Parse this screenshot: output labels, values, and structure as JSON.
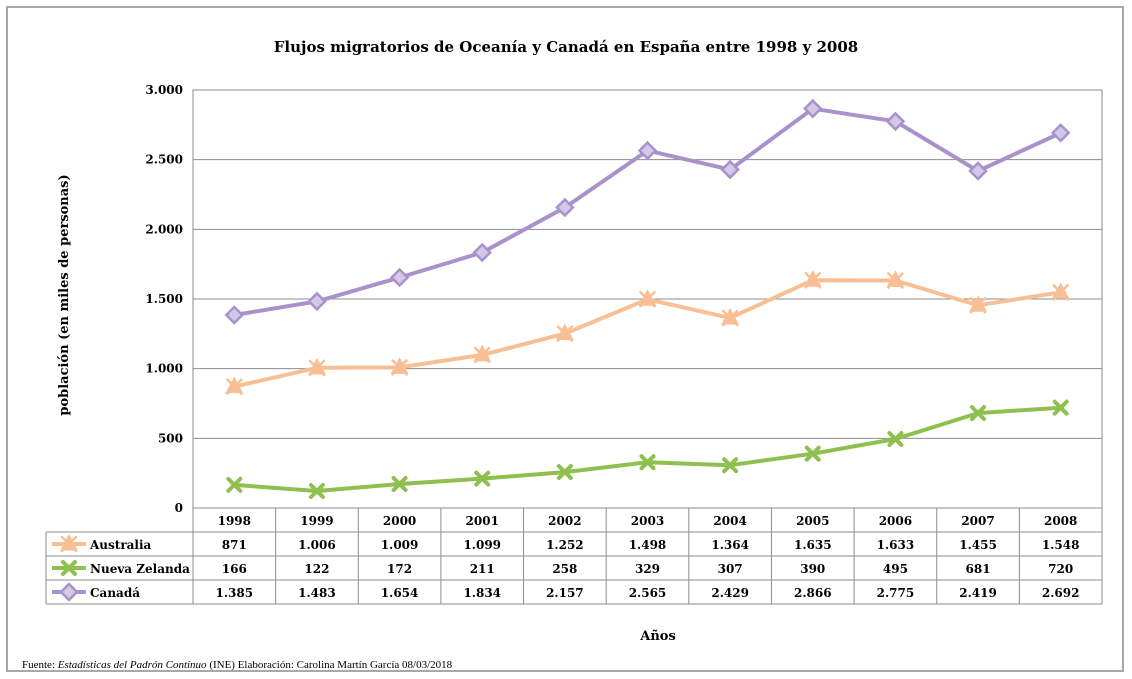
{
  "chart_data": {
    "type": "line",
    "title": "Flujos migratorios de Oceanía y Canadá en España entre 1998 y 2008",
    "xlabel": "Años",
    "ylabel": "población  (en miles de personas)",
    "categories": [
      "1998",
      "1999",
      "2000",
      "2001",
      "2002",
      "2003",
      "2004",
      "2005",
      "2006",
      "2007",
      "2008"
    ],
    "ylim": [
      0,
      3000
    ],
    "yticks": [
      0,
      500,
      1000,
      1500,
      2000,
      2500,
      3000
    ],
    "ytick_labels": [
      "0",
      "500",
      "1.000",
      "1.500",
      "2.000",
      "2.500",
      "3.000"
    ],
    "grid": true,
    "legend": "data-table",
    "series": [
      {
        "name": "Australia",
        "color": "#f8bf94",
        "marker": "triangle-x",
        "values": [
          871,
          1006,
          1009,
          1099,
          1252,
          1498,
          1364,
          1635,
          1633,
          1455,
          1548
        ],
        "labels": [
          "871",
          "1.006",
          "1.009",
          "1.099",
          "1.252",
          "1.498",
          "1.364",
          "1.635",
          "1.633",
          "1.455",
          "1.548"
        ]
      },
      {
        "name": "Nueva Zelanda",
        "color": "#8fbf4f",
        "marker": "x",
        "values": [
          166,
          122,
          172,
          211,
          258,
          329,
          307,
          390,
          495,
          681,
          720
        ],
        "labels": [
          "166",
          "122",
          "172",
          "211",
          "258",
          "329",
          "307",
          "390",
          "495",
          "681",
          "720"
        ]
      },
      {
        "name": "Canadá",
        "color": "#a991cb",
        "marker": "diamond",
        "values": [
          1385,
          1483,
          1654,
          1834,
          2157,
          2565,
          2429,
          2866,
          2775,
          2419,
          2692
        ],
        "labels": [
          "1.385",
          "1.483",
          "1.654",
          "1.834",
          "2.157",
          "2.565",
          "2.429",
          "2.866",
          "2.775",
          "2.419",
          "2.692"
        ]
      }
    ]
  },
  "source": {
    "prefix": "Fuente: ",
    "italic": "Estadísticas del Padrón Continuo",
    "suffix": " (INE)   Elaboración: Carolina Martín García    08/03/2018"
  }
}
